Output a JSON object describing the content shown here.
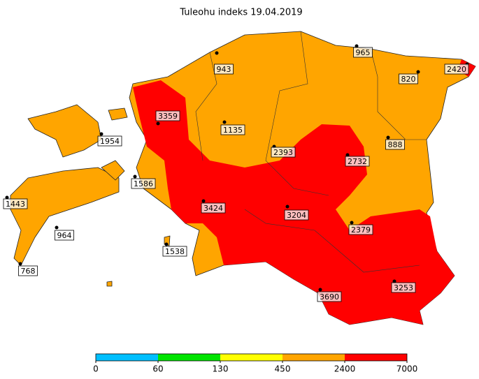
{
  "title": "Tuleohu indeks 19.04.2019",
  "stations": [
    {
      "value": 943
    },
    {
      "value": 965
    },
    {
      "value": 820
    },
    {
      "value": 2420
    },
    {
      "value": 3359
    },
    {
      "value": 1135
    },
    {
      "value": 1954
    },
    {
      "value": 2393
    },
    {
      "value": 2732
    },
    {
      "value": 888
    },
    {
      "value": 1586
    },
    {
      "value": 1443
    },
    {
      "value": 3424
    },
    {
      "value": 3204
    },
    {
      "value": 964
    },
    {
      "value": 2379
    },
    {
      "value": 1538
    },
    {
      "value": 768
    },
    {
      "value": 3690
    },
    {
      "value": 3253
    }
  ],
  "colorbar": {
    "ticks": [
      0,
      60,
      130,
      450,
      2400,
      7000
    ],
    "colors": [
      "#00bfff",
      "#00e400",
      "#ffff00",
      "#ffa500",
      "#ff0000"
    ]
  }
}
